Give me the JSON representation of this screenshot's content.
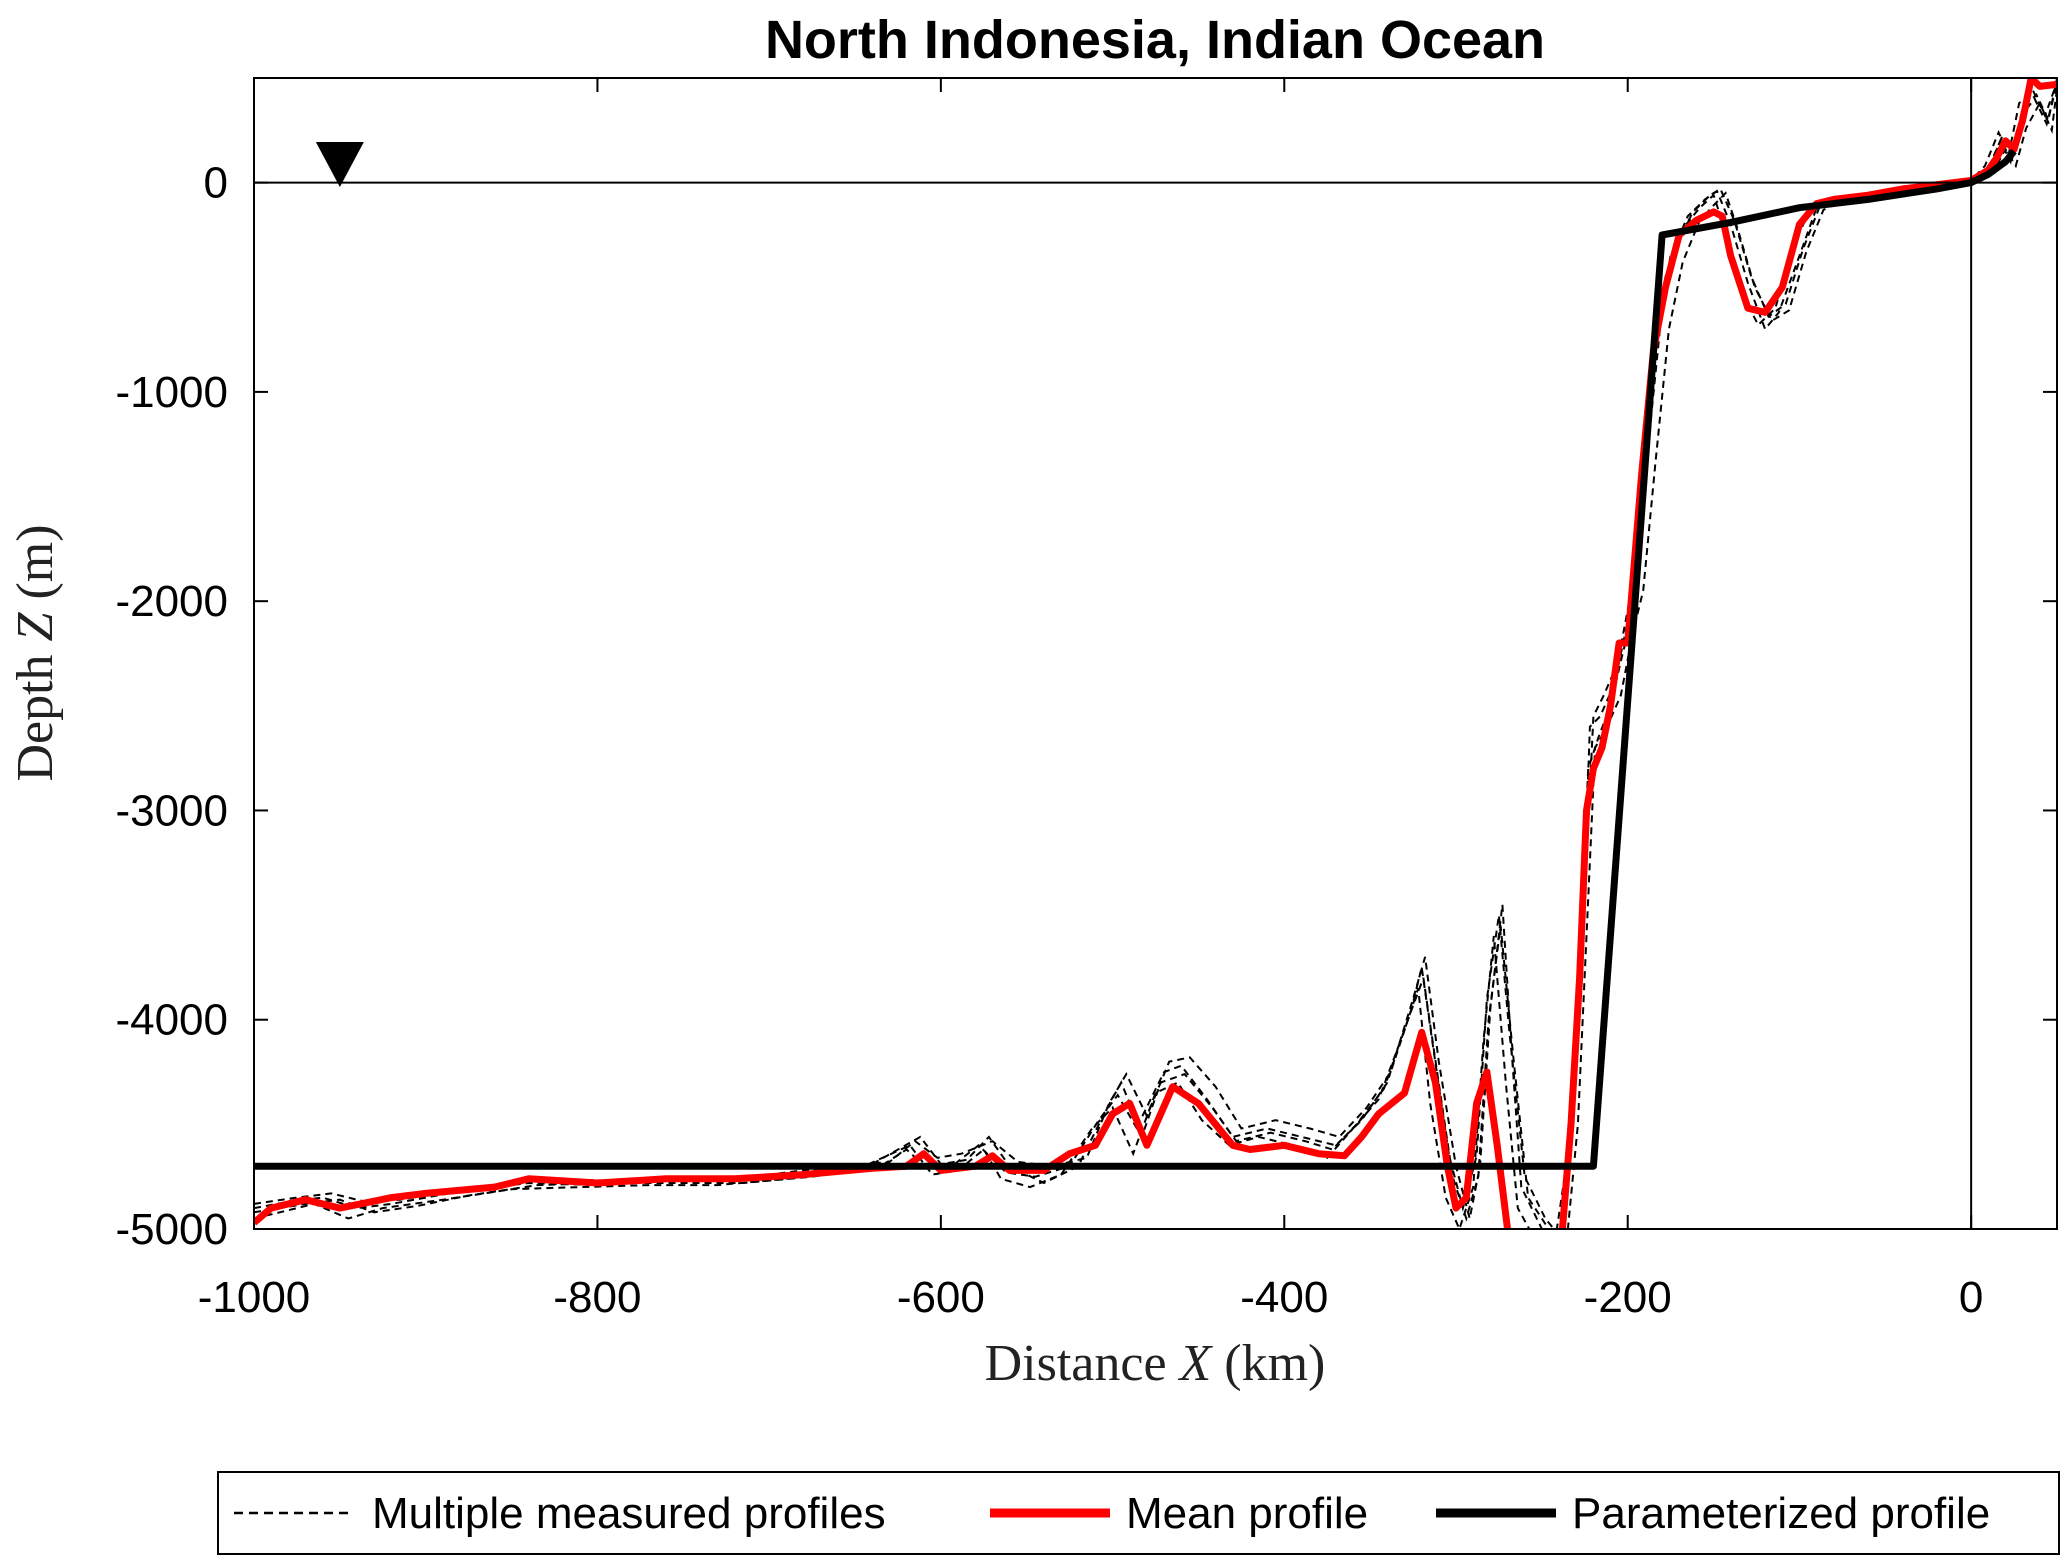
{
  "chart_data": {
    "type": "line",
    "title": "North Indonesia, Indian Ocean",
    "xlabel": {
      "prefix": "Distance",
      "var": "X",
      "suffix": "(km)"
    },
    "ylabel": {
      "prefix": "Depth",
      "var": "Z",
      "suffix": "(m)"
    },
    "xlim": [
      -1000,
      50
    ],
    "ylim": [
      -5000,
      500
    ],
    "xticks": [
      -1000,
      -800,
      -600,
      -400,
      -200,
      0
    ],
    "yticks": [
      0,
      -1000,
      -2000,
      -3000,
      -4000,
      -5000
    ],
    "xtick_labels": [
      "-1000",
      "-800",
      "-600",
      "-400",
      "-200",
      "0"
    ],
    "ytick_labels": [
      "0",
      "-1000",
      "-2000",
      "-3000",
      "-4000",
      "-5000"
    ],
    "grid": false,
    "reference_lines": {
      "sea_level_z": 0,
      "shoreline_x": 0
    },
    "marker": {
      "shape": "inverted-triangle",
      "x": -950,
      "z": 180
    },
    "legend": {
      "placement": "bottom, outside",
      "entries": [
        "Multiple measured profiles",
        "Mean profile",
        "Parameterized profile"
      ]
    },
    "colors": {
      "measured": "#000000",
      "mean": "#ff0000",
      "parameterized": "#000000"
    },
    "series": [
      {
        "name": "Parameterized profile",
        "x": [
          -1000,
          -220,
          -180,
          -140,
          -100,
          -60,
          -20,
          0,
          10,
          20,
          25
        ],
        "y": [
          -4700,
          -4700,
          -250,
          -190,
          -120,
          -80,
          -30,
          0,
          40,
          100,
          150
        ]
      },
      {
        "name": "Mean profile",
        "x": [
          -1000,
          -990,
          -970,
          -950,
          -920,
          -900,
          -860,
          -840,
          -800,
          -760,
          -720,
          -680,
          -640,
          -620,
          -610,
          -600,
          -580,
          -570,
          -560,
          -540,
          -525,
          -510,
          -500,
          -490,
          -480,
          -465,
          -450,
          -440,
          -430,
          -420,
          -400,
          -380,
          -365,
          -355,
          -345,
          -330,
          -320,
          -312,
          -305,
          -300,
          -294,
          -288,
          -282,
          -276,
          -270,
          -265,
          -262,
          -250,
          -240,
          -233,
          -228,
          -224,
          -220,
          -215,
          -210,
          -205,
          -200,
          -197,
          -192,
          -185,
          -178,
          -170,
          -160,
          -150,
          -145,
          -140,
          -130,
          -120,
          -110,
          -100,
          -90,
          -80,
          -60,
          -40,
          -20,
          0,
          10,
          15,
          20,
          25,
          30,
          35,
          40,
          50
        ],
        "y": [
          -4970,
          -4900,
          -4860,
          -4900,
          -4850,
          -4830,
          -4800,
          -4760,
          -4780,
          -4760,
          -4760,
          -4740,
          -4710,
          -4700,
          -4640,
          -4720,
          -4700,
          -4650,
          -4720,
          -4720,
          -4640,
          -4600,
          -4450,
          -4400,
          -4600,
          -4320,
          -4400,
          -4500,
          -4600,
          -4620,
          -4600,
          -4640,
          -4650,
          -4560,
          -4450,
          -4350,
          -4060,
          -4300,
          -4700,
          -4900,
          -4850,
          -4400,
          -4250,
          -4600,
          -5000,
          -5200,
          -5400,
          -5400,
          -5200,
          -4500,
          -3800,
          -3000,
          -2800,
          -2700,
          -2500,
          -2200,
          -2200,
          -1900,
          -1400,
          -800,
          -500,
          -250,
          -180,
          -140,
          -160,
          -350,
          -600,
          -620,
          -500,
          -200,
          -100,
          -80,
          -60,
          -30,
          -10,
          10,
          60,
          120,
          200,
          160,
          300,
          500,
          460,
          470
        ]
      },
      {
        "name": "",
        "x": [
          -1000,
          -980,
          -960,
          -940,
          -920,
          -880,
          -840,
          -800,
          -760,
          -720,
          -680,
          -640,
          -612,
          -600,
          -585,
          -572,
          -560,
          -540,
          -520,
          -505,
          -495,
          -485,
          -470,
          -460,
          -445,
          -430,
          -410,
          -390,
          -370,
          -355,
          -340,
          -325,
          -318,
          -310,
          -300,
          -292,
          -286,
          -280,
          -273,
          -268,
          -262,
          -250,
          -240,
          -232,
          -226,
          -222,
          -216,
          -208,
          -200,
          -196,
          -190,
          -182,
          -175,
          -165,
          -155,
          -148,
          -140,
          -130,
          -120,
          -112,
          -100,
          -90,
          -80,
          -60,
          -40,
          -20,
          0,
          10,
          18,
          24,
          30,
          38,
          45,
          50
        ],
        "y": [
          -4900,
          -4870,
          -4850,
          -4900,
          -4880,
          -4820,
          -4780,
          -4790,
          -4770,
          -4770,
          -4730,
          -4690,
          -4560,
          -4690,
          -4670,
          -4560,
          -4700,
          -4780,
          -4700,
          -4450,
          -4300,
          -4500,
          -4250,
          -4220,
          -4380,
          -4560,
          -4520,
          -4560,
          -4600,
          -4480,
          -4300,
          -3900,
          -3700,
          -4200,
          -4700,
          -4950,
          -4700,
          -3950,
          -3450,
          -4100,
          -4800,
          -5000,
          -5100,
          -4400,
          -3500,
          -2600,
          -2550,
          -2400,
          -2100,
          -1900,
          -1300,
          -650,
          -350,
          -160,
          -80,
          -40,
          -200,
          -480,
          -700,
          -620,
          -350,
          -120,
          -80,
          -60,
          -40,
          -20,
          0,
          60,
          220,
          120,
          360,
          420,
          300,
          500
        ]
      },
      {
        "name": "",
        "x": [
          -1000,
          -985,
          -965,
          -945,
          -925,
          -890,
          -850,
          -810,
          -770,
          -730,
          -690,
          -650,
          -618,
          -605,
          -590,
          -575,
          -565,
          -548,
          -530,
          -512,
          -500,
          -488,
          -475,
          -462,
          -448,
          -432,
          -415,
          -395,
          -375,
          -360,
          -345,
          -330,
          -322,
          -315,
          -306,
          -298,
          -290,
          -284,
          -278,
          -271,
          -264,
          -254,
          -244,
          -234,
          -228,
          -223,
          -217,
          -210,
          -203,
          -198,
          -193,
          -186,
          -178,
          -168,
          -158,
          -150,
          -142,
          -134,
          -124,
          -114,
          -104,
          -94,
          -84,
          -64,
          -44,
          -24,
          0,
          12,
          20,
          26,
          32,
          40,
          47,
          50
        ],
        "y": [
          -4950,
          -4920,
          -4880,
          -4950,
          -4900,
          -4860,
          -4810,
          -4800,
          -4790,
          -4790,
          -4760,
          -4720,
          -4600,
          -4740,
          -4720,
          -4620,
          -4760,
          -4800,
          -4740,
          -4520,
          -4420,
          -4640,
          -4350,
          -4300,
          -4480,
          -4600,
          -4560,
          -4600,
          -4660,
          -4520,
          -4380,
          -4050,
          -3850,
          -4400,
          -4850,
          -5000,
          -4800,
          -4100,
          -3600,
          -4300,
          -4900,
          -5050,
          -5150,
          -4600,
          -3700,
          -2800,
          -2650,
          -2500,
          -2250,
          -2100,
          -1550,
          -800,
          -450,
          -220,
          -120,
          -60,
          -260,
          -520,
          -680,
          -600,
          -300,
          -140,
          -100,
          -70,
          -50,
          -30,
          -10,
          40,
          160,
          80,
          260,
          380,
          250,
          450
        ]
      },
      {
        "name": "",
        "x": [
          -1000,
          -975,
          -955,
          -935,
          -915,
          -870,
          -830,
          -790,
          -750,
          -710,
          -670,
          -630,
          -615,
          -602,
          -588,
          -570,
          -555,
          -535,
          -515,
          -502,
          -492,
          -480,
          -467,
          -455,
          -440,
          -425,
          -405,
          -385,
          -368,
          -352,
          -338,
          -326,
          -320,
          -313,
          -304,
          -296,
          -288,
          -282,
          -275,
          -269,
          -260,
          -248,
          -238,
          -231,
          -225,
          -220,
          -214,
          -206,
          -199,
          -194,
          -188,
          -180,
          -172,
          -162,
          -152,
          -146,
          -138,
          -128,
          -118,
          -108,
          -98,
          -88,
          -78,
          -58,
          -38,
          -18,
          0,
          8,
          16,
          22,
          28,
          36,
          43,
          50
        ],
        "y": [
          -4880,
          -4850,
          -4830,
          -4870,
          -4860,
          -4800,
          -4760,
          -4770,
          -4750,
          -4750,
          -4710,
          -4680,
          -4580,
          -4660,
          -4640,
          -4580,
          -4680,
          -4700,
          -4660,
          -4400,
          -4260,
          -4460,
          -4200,
          -4180,
          -4320,
          -4520,
          -4480,
          -4520,
          -4560,
          -4420,
          -4250,
          -3950,
          -3750,
          -4150,
          -4650,
          -4900,
          -4650,
          -3900,
          -3500,
          -4050,
          -4750,
          -4950,
          -5050,
          -4350,
          -3400,
          -2550,
          -2450,
          -2300,
          -2000,
          -1850,
          -1250,
          -600,
          -300,
          -140,
          -60,
          -30,
          -180,
          -450,
          -640,
          -580,
          -320,
          -110,
          -70,
          -50,
          -30,
          -10,
          10,
          80,
          240,
          140,
          380,
          440,
          320,
          480
        ]
      },
      {
        "name": "",
        "x": [
          -1000,
          -970,
          -950,
          -930,
          -905,
          -875,
          -835,
          -795,
          -755,
          -715,
          -675,
          -635,
          -620,
          -608,
          -592,
          -578,
          -562,
          -545,
          -525,
          -508,
          -497,
          -483,
          -472,
          -458,
          -442,
          -428,
          -408,
          -388,
          -372,
          -358,
          -342,
          -328,
          -319,
          -311,
          -302,
          -294,
          -287,
          -281,
          -274,
          -267,
          -258,
          -246,
          -236,
          -229,
          -224,
          -219,
          -212,
          -204,
          -197,
          -191,
          -184,
          -176,
          -168,
          -158,
          -149,
          -143,
          -136,
          -126,
          -116,
          -106,
          -96,
          -86,
          -76,
          -56,
          -36,
          -16,
          0,
          9,
          17,
          23,
          29,
          37,
          44,
          50
        ],
        "y": [
          -4920,
          -4880,
          -4860,
          -4920,
          -4890,
          -4840,
          -4790,
          -4780,
          -4780,
          -4780,
          -4750,
          -4700,
          -4620,
          -4710,
          -4690,
          -4600,
          -4730,
          -4750,
          -4700,
          -4480,
          -4360,
          -4560,
          -4300,
          -4260,
          -4420,
          -4580,
          -4540,
          -4580,
          -4620,
          -4500,
          -4330,
          -4000,
          -3800,
          -4250,
          -4750,
          -4950,
          -4750,
          -4000,
          -3550,
          -4150,
          -4850,
          -5000,
          -5100,
          -4500,
          -3600,
          -2700,
          -2600,
          -2450,
          -2150,
          -1950,
          -1350,
          -700,
          -380,
          -180,
          -100,
          -50,
          -220,
          -500,
          -660,
          -610,
          -330,
          -130,
          -90,
          -60,
          -40,
          -20,
          0,
          50,
          200,
          100,
          320,
          400,
          280,
          470
        ]
      }
    ]
  }
}
